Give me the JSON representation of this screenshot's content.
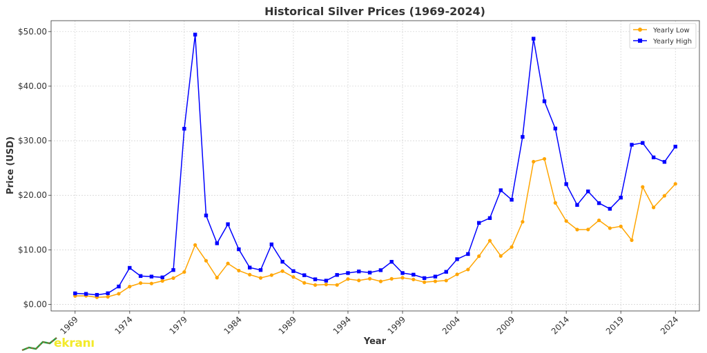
{
  "chart_data": {
    "type": "line",
    "title": "Historical Silver Prices (1969-2024)",
    "xlabel": "Year",
    "ylabel": "Price (USD)",
    "xlim": [
      1966.8,
      2026.2
    ],
    "ylim": [
      -1.2,
      52.0
    ],
    "x_ticks": [
      1969,
      1974,
      1979,
      1984,
      1989,
      1994,
      1999,
      2004,
      2009,
      2014,
      2019,
      2024
    ],
    "x_tick_labels": [
      "1969",
      "1974",
      "1979",
      "1984",
      "1989",
      "1994",
      "1999",
      "2004",
      "2009",
      "2014",
      "2019",
      "2024"
    ],
    "y_ticks": [
      0,
      10,
      20,
      30,
      40,
      50
    ],
    "y_tick_labels": [
      "$0.00",
      "$10.00",
      "$20.00",
      "$30.00",
      "$40.00",
      "$50.00"
    ],
    "grid": true,
    "legend_position": "top-right",
    "x": [
      1969,
      1970,
      1971,
      1972,
      1973,
      1974,
      1975,
      1976,
      1977,
      1978,
      1979,
      1980,
      1981,
      1982,
      1983,
      1984,
      1985,
      1986,
      1987,
      1988,
      1989,
      1990,
      1991,
      1992,
      1993,
      1994,
      1995,
      1996,
      1997,
      1998,
      1999,
      2000,
      2001,
      2002,
      2003,
      2004,
      2005,
      2006,
      2007,
      2008,
      2009,
      2010,
      2011,
      2012,
      2013,
      2014,
      2015,
      2016,
      2017,
      2018,
      2019,
      2020,
      2021,
      2022,
      2023,
      2024
    ],
    "series": [
      {
        "name": "Yearly Low",
        "color": "#ffa500",
        "marker": "circle",
        "values": [
          1.55,
          1.57,
          1.3,
          1.39,
          1.95,
          3.27,
          3.9,
          3.83,
          4.3,
          4.82,
          5.93,
          10.89,
          8.0,
          4.9,
          7.5,
          6.2,
          5.45,
          4.85,
          5.36,
          6.1,
          5.02,
          3.95,
          3.55,
          3.65,
          3.56,
          4.65,
          4.39,
          4.71,
          4.22,
          4.69,
          4.88,
          4.57,
          4.07,
          4.23,
          4.37,
          5.5,
          6.39,
          8.83,
          11.67,
          8.88,
          10.51,
          15.14,
          26.16,
          26.67,
          18.61,
          15.28,
          13.71,
          13.73,
          15.4,
          13.97,
          14.3,
          11.77,
          21.53,
          17.77,
          19.9,
          22.09
        ]
      },
      {
        "name": "Yearly High",
        "color": "#0000ff",
        "marker": "square",
        "values": [
          2.02,
          1.93,
          1.75,
          2.04,
          3.28,
          6.7,
          5.2,
          5.1,
          4.95,
          6.3,
          32.2,
          49.45,
          16.3,
          11.2,
          14.7,
          10.1,
          6.75,
          6.3,
          11.0,
          7.82,
          6.1,
          5.35,
          4.6,
          4.35,
          5.4,
          5.75,
          6.04,
          5.83,
          6.27,
          7.81,
          5.75,
          5.45,
          4.82,
          5.1,
          5.97,
          8.29,
          9.23,
          14.94,
          15.82,
          20.92,
          19.18,
          30.7,
          48.7,
          37.23,
          32.23,
          22.05,
          18.23,
          20.71,
          18.56,
          17.52,
          19.57,
          29.26,
          29.59,
          26.94,
          26.12,
          28.92
        ]
      }
    ]
  },
  "watermark": {
    "text": "ekranı"
  }
}
